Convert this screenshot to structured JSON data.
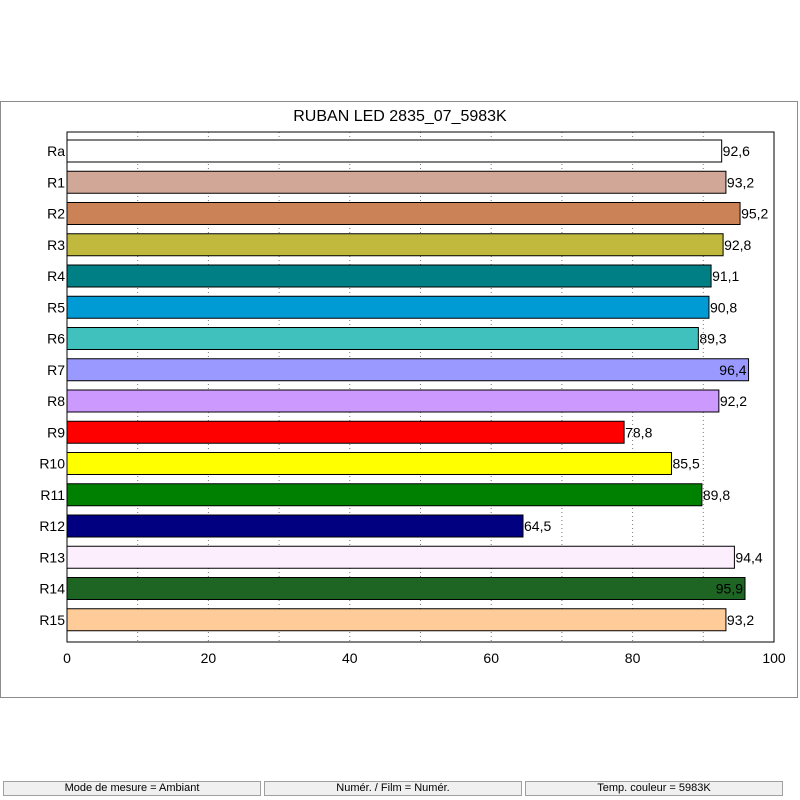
{
  "chart_data": {
    "type": "bar",
    "orientation": "horizontal",
    "title": "RUBAN LED 2835_07_5983K",
    "categories": [
      "Ra",
      "R1",
      "R2",
      "R3",
      "R4",
      "R5",
      "R6",
      "R7",
      "R8",
      "R9",
      "R10",
      "R11",
      "R12",
      "R13",
      "R14",
      "R15"
    ],
    "values": [
      92.6,
      93.2,
      95.2,
      92.8,
      91.1,
      90.8,
      89.3,
      96.4,
      92.2,
      78.8,
      85.5,
      89.8,
      64.5,
      94.4,
      95.9,
      93.2
    ],
    "value_labels": [
      "92,6",
      "93,2",
      "95,2",
      "92,8",
      "91,1",
      "90,8",
      "89,3",
      "96,4",
      "92,2",
      "78,8",
      "85,5",
      "89,8",
      "64,5",
      "94,4",
      "95,9",
      "93,2"
    ],
    "colors": [
      "#ffffff",
      "#d1a898",
      "#cc8257",
      "#c1b83e",
      "#008085",
      "#009bd4",
      "#40c1bd",
      "#9999ff",
      "#cc99ff",
      "#ff0000",
      "#ffff00",
      "#008000",
      "#000080",
      "#fdeefe",
      "#1e6423",
      "#ffcc99"
    ],
    "xlim": [
      0,
      100
    ],
    "xticks": [
      0,
      20,
      40,
      60,
      80,
      100
    ],
    "grid": true,
    "legend": false,
    "xlabel": "",
    "ylabel": ""
  },
  "statusbar": {
    "mode": "Mode de mesure = Ambiant",
    "film": "Numér. / Film = Numér.",
    "temp": "Temp. couleur = 5983K"
  }
}
